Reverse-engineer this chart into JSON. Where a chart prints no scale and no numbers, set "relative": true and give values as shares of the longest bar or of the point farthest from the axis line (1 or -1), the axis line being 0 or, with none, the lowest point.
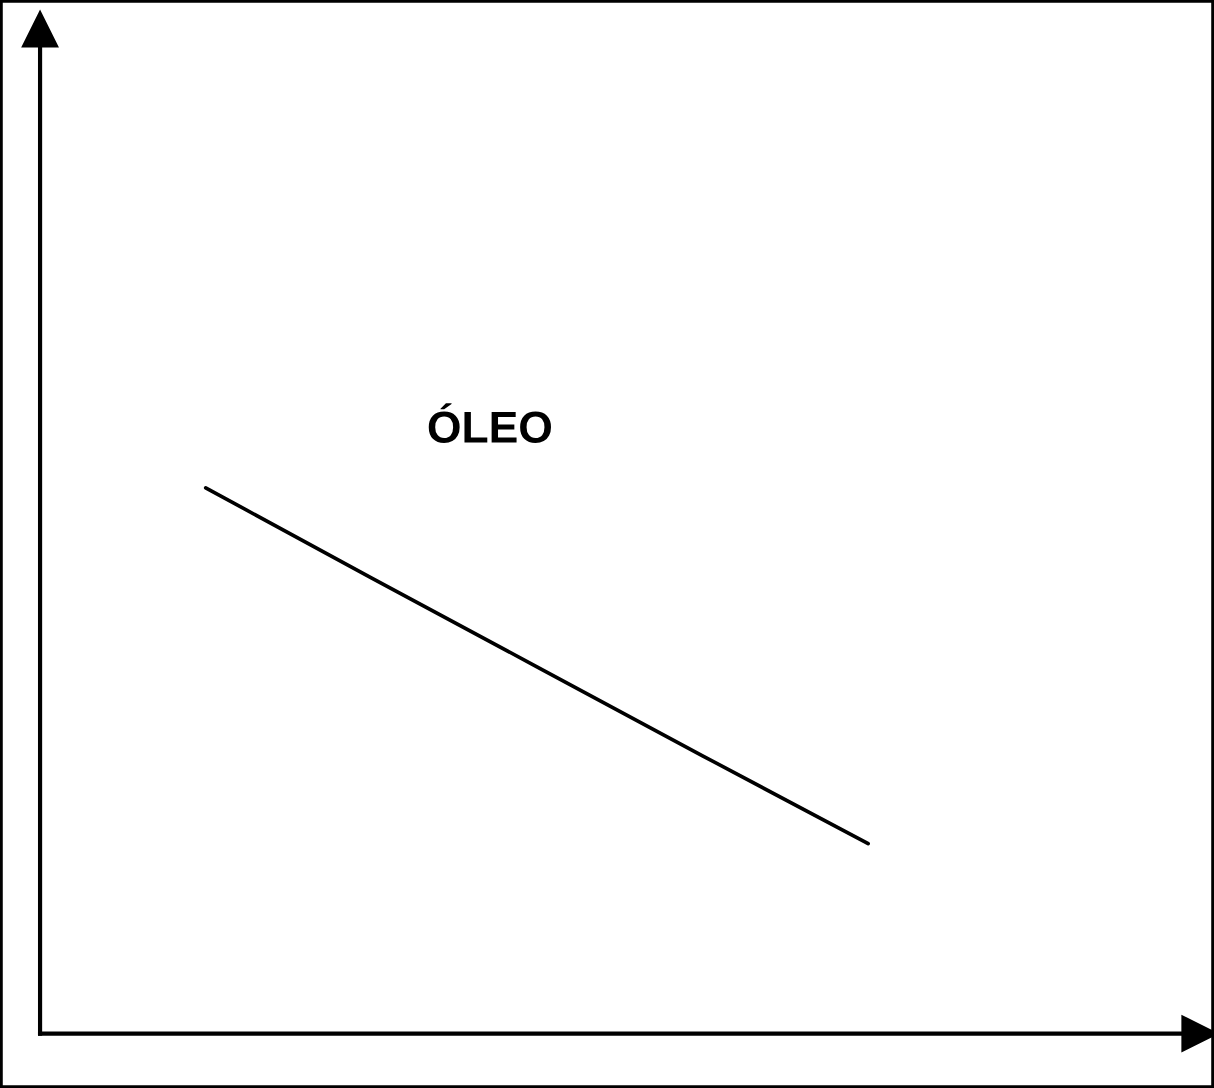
{
  "chart_data": {
    "type": "line",
    "relative": true,
    "categories": [
      null,
      null,
      null,
      null,
      null,
      null,
      null,
      null
    ],
    "series": [
      {
        "color": "#000000",
        "values": [
          null,
          1,
          0.835,
          0.672,
          0.509,
          0.348,
          null,
          null
        ]
      }
    ],
    "annotations": [
      "ÓLEO"
    ],
    "legend": false,
    "marker": "none",
    "line_style": "solid"
  }
}
